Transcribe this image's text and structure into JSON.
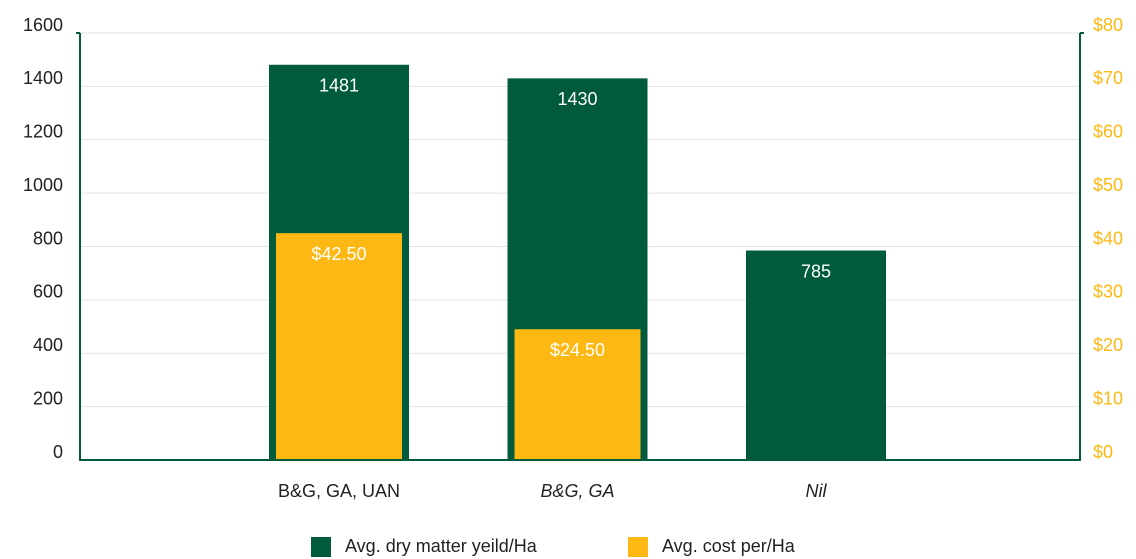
{
  "chart_data": {
    "type": "bar",
    "categories": [
      "B&G, GA, UAN",
      "B&G, GA",
      "Nil"
    ],
    "series": [
      {
        "name": "Avg. dry matter yeild/Ha",
        "color": "#005b3d",
        "values": [
          1481,
          1430,
          785
        ]
      },
      {
        "name": "Avg. cost per/Ha",
        "color": "#fdb813",
        "axis": "y2",
        "values": [
          42.5,
          24.5,
          null
        ],
        "value_labels": [
          "$42.50",
          "$24.50",
          null
        ]
      }
    ],
    "ylim": [
      0,
      1600
    ],
    "yticks": [
      0,
      200,
      400,
      600,
      800,
      1000,
      1200,
      1400,
      1600
    ],
    "y2lim": [
      0,
      80
    ],
    "y2ticks": [
      {
        "value": 0,
        "label": "$0"
      },
      {
        "value": 10,
        "label": "$10"
      },
      {
        "value": 20,
        "label": "$20"
      },
      {
        "value": 30,
        "label": "$30"
      },
      {
        "value": 40,
        "label": "$40"
      },
      {
        "value": 50,
        "label": "$50"
      },
      {
        "value": 60,
        "label": "$60"
      },
      {
        "value": 70,
        "label": "$70"
      },
      {
        "value": 80,
        "label": "$80"
      }
    ],
    "grid": true,
    "legend": "bottom"
  }
}
